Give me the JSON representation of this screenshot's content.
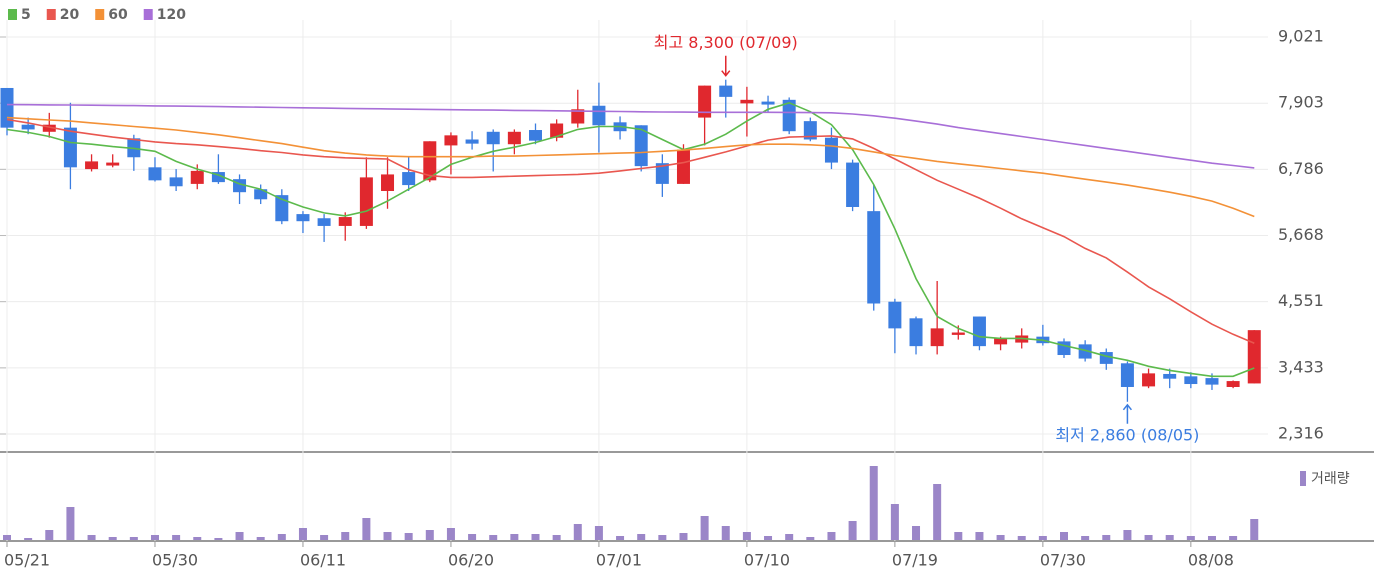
{
  "chart_data": {
    "type": "candlestick",
    "categories": [
      "05/21",
      null,
      null,
      null,
      null,
      null,
      null,
      "05/30",
      null,
      null,
      null,
      null,
      null,
      null,
      "06/11",
      null,
      null,
      null,
      null,
      null,
      null,
      "06/20",
      null,
      null,
      null,
      null,
      null,
      null,
      "07/01",
      null,
      null,
      null,
      null,
      null,
      null,
      "07/10",
      null,
      null,
      null,
      null,
      null,
      null,
      "07/19",
      null,
      null,
      null,
      null,
      null,
      null,
      "07/30",
      null,
      null,
      null,
      null,
      null,
      null,
      "08/08",
      null,
      null,
      null
    ],
    "open": [
      8160,
      7540,
      7420,
      7490,
      6790,
      6850,
      7310,
      6820,
      6650,
      6540,
      6740,
      6620,
      6450,
      6350,
      6030,
      5960,
      5830,
      5830,
      6420,
      6740,
      6600,
      7190,
      7290,
      7420,
      7210,
      7450,
      7320,
      7560,
      7860,
      7580,
      7530,
      6890,
      6540,
      7660,
      8200,
      7900,
      7930,
      7960,
      7600,
      7320,
      6900,
      6080,
      4550,
      4270,
      3800,
      3990,
      4300,
      3830,
      3860,
      3960,
      3880,
      3830,
      3700,
      3510,
      3120,
      3330,
      3290,
      3260,
      3110,
      3170
    ],
    "high": [
      8160,
      7660,
      7740,
      7910,
      7040,
      7040,
      7370,
      6990,
      6790,
      6870,
      7040,
      6700,
      6530,
      6450,
      6080,
      6030,
      6060,
      6990,
      6990,
      7000,
      7260,
      7410,
      7430,
      7460,
      7460,
      7560,
      7630,
      8130,
      8250,
      7680,
      7530,
      7040,
      7210,
      8200,
      8300,
      8180,
      8030,
      8000,
      7660,
      7490,
      6950,
      6530,
      4600,
      4300,
      4900,
      4150,
      4300,
      3960,
      4100,
      4160,
      3930,
      3900,
      3760,
      3540,
      3420,
      3420,
      3360,
      3340,
      3220,
      4070
    ],
    "low": [
      7360,
      7380,
      7320,
      6450,
      6750,
      6820,
      6760,
      6580,
      6420,
      6450,
      6540,
      6200,
      6200,
      5860,
      5710,
      5560,
      5580,
      5780,
      6120,
      6420,
      6570,
      6700,
      7120,
      6750,
      7040,
      7210,
      7260,
      7490,
      7070,
      7290,
      6750,
      6320,
      6540,
      7190,
      7660,
      7340,
      7760,
      7380,
      7260,
      6790,
      6080,
      4400,
      3680,
      3660,
      3660,
      3910,
      3730,
      3730,
      3760,
      3810,
      3600,
      3540,
      3400,
      2860,
      3090,
      3090,
      3090,
      3060,
      3090,
      3170
    ],
    "close": [
      7490,
      7460,
      7540,
      6820,
      6920,
      6900,
      6990,
      6600,
      6500,
      6760,
      6570,
      6400,
      6280,
      5910,
      5910,
      5830,
      5980,
      6650,
      6700,
      6520,
      7260,
      7360,
      7220,
      7210,
      7420,
      7270,
      7560,
      7800,
      7530,
      7430,
      6840,
      6540,
      7120,
      8200,
      8010,
      7960,
      7880,
      7430,
      7290,
      6900,
      6150,
      4520,
      4100,
      3800,
      4100,
      4030,
      3800,
      3930,
      3980,
      3850,
      3650,
      3590,
      3500,
      3110,
      3340,
      3250,
      3160,
      3150,
      3210,
      4070
    ],
    "up_color": "#e0282e",
    "down_color": "#3b7de0",
    "series": [
      {
        "name": "5",
        "color": "#5cba4c",
        "values": [
          7459,
          7410,
          7340,
          7240,
          7210,
          7170,
          7140,
          7090,
          6920,
          6790,
          6690,
          6540,
          6450,
          6280,
          6150,
          6050,
          6000,
          6080,
          6250,
          6450,
          6650,
          6870,
          6990,
          7090,
          7160,
          7240,
          7340,
          7460,
          7510,
          7510,
          7460,
          7290,
          7120,
          7210,
          7380,
          7600,
          7800,
          7910,
          7760,
          7540,
          7120,
          6530,
          5780,
          4940,
          4300,
          4100,
          3960,
          3930,
          3930,
          3900,
          3810,
          3730,
          3630,
          3560,
          3460,
          3390,
          3340,
          3290,
          3290,
          3430
        ]
      },
      {
        "name": "20",
        "color": "#e9574f",
        "values": [
          7627,
          7570,
          7500,
          7430,
          7380,
          7330,
          7290,
          7250,
          7220,
          7200,
          7170,
          7140,
          7100,
          7070,
          7030,
          7000,
          6980,
          6970,
          6960,
          6780,
          6680,
          6650,
          6650,
          6660,
          6670,
          6680,
          6690,
          6700,
          6720,
          6760,
          6800,
          6840,
          6900,
          6990,
          7080,
          7180,
          7280,
          7330,
          7340,
          7350,
          7300,
          7140,
          6960,
          6780,
          6600,
          6450,
          6300,
          6130,
          5950,
          5800,
          5650,
          5450,
          5290,
          5050,
          4800,
          4600,
          4380,
          4170,
          4000,
          3850
        ]
      },
      {
        "name": "60",
        "color": "#f39137",
        "values": [
          7660,
          7640,
          7620,
          7600,
          7570,
          7540,
          7510,
          7480,
          7450,
          7410,
          7370,
          7320,
          7270,
          7220,
          7160,
          7100,
          7060,
          7030,
          7010,
          7000,
          7000,
          7000,
          7000,
          7010,
          7010,
          7020,
          7030,
          7040,
          7050,
          7060,
          7070,
          7090,
          7110,
          7140,
          7170,
          7200,
          7210,
          7210,
          7200,
          7180,
          7140,
          7080,
          7020,
          6970,
          6920,
          6880,
          6840,
          6800,
          6760,
          6720,
          6670,
          6620,
          6570,
          6520,
          6460,
          6400,
          6330,
          6250,
          6130,
          5990
        ]
      },
      {
        "name": "120",
        "color": "#a86fd8",
        "values": [
          7880,
          7878,
          7875,
          7872,
          7870,
          7866,
          7862,
          7858,
          7854,
          7850,
          7845,
          7840,
          7835,
          7830,
          7825,
          7820,
          7815,
          7810,
          7806,
          7802,
          7798,
          7794,
          7790,
          7786,
          7782,
          7778,
          7774,
          7770,
          7766,
          7762,
          7758,
          7755,
          7752,
          7750,
          7750,
          7750,
          7750,
          7748,
          7745,
          7740,
          7720,
          7690,
          7650,
          7600,
          7550,
          7490,
          7440,
          7390,
          7340,
          7290,
          7240,
          7190,
          7140,
          7090,
          7040,
          6990,
          6940,
          6890,
          6850,
          6810
        ]
      }
    ],
    "ylim": [
      2316,
      9021
    ],
    "yticks": [
      {
        "value": 2316,
        "label": "2,316"
      },
      {
        "value": 3433,
        "label": "3,433"
      },
      {
        "value": 4551,
        "label": "4,551"
      },
      {
        "value": 5668,
        "label": "5,668"
      },
      {
        "value": 6786,
        "label": "6,786"
      },
      {
        "value": 7903,
        "label": "7,903"
      },
      {
        "value": 9021,
        "label": "9,021"
      }
    ],
    "grid": true,
    "annotations": [
      {
        "text": "최고 8,300 (07/09)",
        "color": "#e0282e"
      },
      {
        "text": "최저 2,860 (08/05)",
        "color": "#3b7de0"
      }
    ],
    "volume": {
      "name": "거래량",
      "color": "#9b86c8",
      "ylim": [
        0,
        76
      ],
      "values": [
        5,
        2,
        10,
        33,
        5,
        3,
        3,
        5,
        5,
        3,
        2,
        8,
        3,
        6,
        12,
        5,
        8,
        22,
        8,
        7,
        10,
        12,
        6,
        5,
        6,
        6,
        5,
        16,
        14,
        4,
        6,
        5,
        7,
        24,
        14,
        8,
        4,
        6,
        3,
        8,
        19,
        74,
        36,
        14,
        56,
        8,
        8,
        5,
        4,
        4,
        8,
        4,
        5,
        10,
        5,
        5,
        4,
        4,
        4,
        21
      ]
    }
  }
}
